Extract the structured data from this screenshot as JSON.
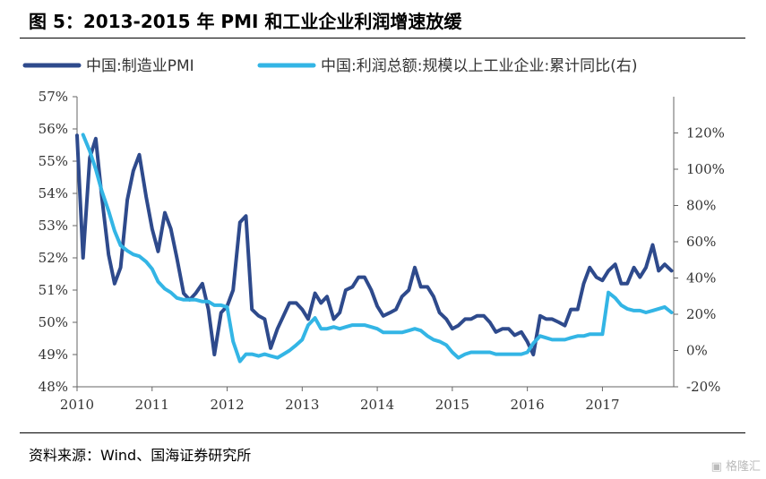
{
  "figure": {
    "title": "图 5：2013-2015 年 PMI 和工业企业利润增速放缓",
    "source": "资料来源：Wind、国海证券研究所",
    "watermark": "格隆汇"
  },
  "chart_data": {
    "type": "line",
    "x_ticks": [
      "2010",
      "2011",
      "2012",
      "2013",
      "2014",
      "2015",
      "2016",
      "2017"
    ],
    "y_left": {
      "ticks": [
        "57%",
        "56%",
        "55%",
        "54%",
        "53%",
        "52%",
        "51%",
        "50%",
        "49%",
        "48%"
      ],
      "lim": [
        48,
        57
      ]
    },
    "y_right": {
      "ticks": [
        "120%",
        "100%",
        "80%",
        "60%",
        "40%",
        "20%",
        "0%",
        "-20%"
      ],
      "lim": [
        -20,
        140
      ]
    },
    "legend_position": "top",
    "grid": false,
    "series": [
      {
        "name": "中国:制造业PMI",
        "axis": "left",
        "color": "#2e4a8c",
        "points": [
          [
            2010.0,
            55.8
          ],
          [
            2010.08,
            52.0
          ],
          [
            2010.17,
            55.1
          ],
          [
            2010.25,
            55.7
          ],
          [
            2010.33,
            53.9
          ],
          [
            2010.42,
            52.1
          ],
          [
            2010.5,
            51.2
          ],
          [
            2010.58,
            51.7
          ],
          [
            2010.67,
            53.8
          ],
          [
            2010.75,
            54.7
          ],
          [
            2010.83,
            55.2
          ],
          [
            2010.92,
            53.9
          ],
          [
            2011.0,
            52.9
          ],
          [
            2011.08,
            52.2
          ],
          [
            2011.17,
            53.4
          ],
          [
            2011.25,
            52.9
          ],
          [
            2011.33,
            52.0
          ],
          [
            2011.42,
            50.9
          ],
          [
            2011.5,
            50.7
          ],
          [
            2011.58,
            50.9
          ],
          [
            2011.67,
            51.2
          ],
          [
            2011.75,
            50.4
          ],
          [
            2011.83,
            49.0
          ],
          [
            2011.92,
            50.3
          ],
          [
            2012.0,
            50.5
          ],
          [
            2012.08,
            51.0
          ],
          [
            2012.17,
            53.1
          ],
          [
            2012.25,
            53.3
          ],
          [
            2012.33,
            50.4
          ],
          [
            2012.42,
            50.2
          ],
          [
            2012.5,
            50.1
          ],
          [
            2012.58,
            49.2
          ],
          [
            2012.67,
            49.8
          ],
          [
            2012.75,
            50.2
          ],
          [
            2012.83,
            50.6
          ],
          [
            2012.92,
            50.6
          ],
          [
            2013.0,
            50.4
          ],
          [
            2013.08,
            50.1
          ],
          [
            2013.17,
            50.9
          ],
          [
            2013.25,
            50.6
          ],
          [
            2013.33,
            50.8
          ],
          [
            2013.42,
            50.1
          ],
          [
            2013.5,
            50.3
          ],
          [
            2013.58,
            51.0
          ],
          [
            2013.67,
            51.1
          ],
          [
            2013.75,
            51.4
          ],
          [
            2013.83,
            51.4
          ],
          [
            2013.92,
            51.0
          ],
          [
            2014.0,
            50.5
          ],
          [
            2014.08,
            50.2
          ],
          [
            2014.17,
            50.3
          ],
          [
            2014.25,
            50.4
          ],
          [
            2014.33,
            50.8
          ],
          [
            2014.42,
            51.0
          ],
          [
            2014.5,
            51.7
          ],
          [
            2014.58,
            51.1
          ],
          [
            2014.67,
            51.1
          ],
          [
            2014.75,
            50.8
          ],
          [
            2014.83,
            50.3
          ],
          [
            2014.92,
            50.1
          ],
          [
            2015.0,
            49.8
          ],
          [
            2015.08,
            49.9
          ],
          [
            2015.17,
            50.1
          ],
          [
            2015.25,
            50.1
          ],
          [
            2015.33,
            50.2
          ],
          [
            2015.42,
            50.2
          ],
          [
            2015.5,
            50.0
          ],
          [
            2015.58,
            49.7
          ],
          [
            2015.67,
            49.8
          ],
          [
            2015.75,
            49.8
          ],
          [
            2015.83,
            49.6
          ],
          [
            2015.92,
            49.7
          ],
          [
            2016.0,
            49.4
          ],
          [
            2016.08,
            49.0
          ],
          [
            2016.17,
            50.2
          ],
          [
            2016.25,
            50.1
          ],
          [
            2016.33,
            50.1
          ],
          [
            2016.42,
            50.0
          ],
          [
            2016.5,
            49.9
          ],
          [
            2016.58,
            50.4
          ],
          [
            2016.67,
            50.4
          ],
          [
            2016.75,
            51.2
          ],
          [
            2016.83,
            51.7
          ],
          [
            2016.92,
            51.4
          ],
          [
            2017.0,
            51.3
          ],
          [
            2017.08,
            51.6
          ],
          [
            2017.17,
            51.8
          ],
          [
            2017.25,
            51.2
          ],
          [
            2017.33,
            51.2
          ],
          [
            2017.42,
            51.7
          ],
          [
            2017.5,
            51.4
          ],
          [
            2017.58,
            51.7
          ],
          [
            2017.67,
            52.4
          ],
          [
            2017.75,
            51.6
          ],
          [
            2017.83,
            51.8
          ],
          [
            2017.92,
            51.6
          ]
        ]
      },
      {
        "name": "中国:利润总额:规模以上工业企业:累计同比(右)",
        "axis": "right",
        "color": "#33b5e5",
        "points": [
          [
            2010.08,
            119.0
          ],
          [
            2010.17,
            110.0
          ],
          [
            2010.25,
            100.0
          ],
          [
            2010.33,
            88.0
          ],
          [
            2010.42,
            77.0
          ],
          [
            2010.5,
            66.0
          ],
          [
            2010.58,
            58.0
          ],
          [
            2010.67,
            55.0
          ],
          [
            2010.75,
            53.0
          ],
          [
            2010.83,
            52.0
          ],
          [
            2010.92,
            49.0
          ],
          [
            2011.0,
            45.0
          ],
          [
            2011.08,
            38.0
          ],
          [
            2011.17,
            34.0
          ],
          [
            2011.25,
            32.0
          ],
          [
            2011.33,
            29.0
          ],
          [
            2011.42,
            28.0
          ],
          [
            2011.5,
            28.0
          ],
          [
            2011.58,
            28.0
          ],
          [
            2011.67,
            27.0
          ],
          [
            2011.75,
            27.0
          ],
          [
            2011.83,
            25.0
          ],
          [
            2011.92,
            25.0
          ],
          [
            2012.0,
            24.0
          ],
          [
            2012.08,
            5.0
          ],
          [
            2012.17,
            -6.0
          ],
          [
            2012.25,
            -2.0
          ],
          [
            2012.33,
            -2.0
          ],
          [
            2012.42,
            -3.0
          ],
          [
            2012.5,
            -2.0
          ],
          [
            2012.58,
            -3.0
          ],
          [
            2012.67,
            -4.0
          ],
          [
            2012.75,
            -2.0
          ],
          [
            2012.83,
            0.0
          ],
          [
            2012.92,
            3.0
          ],
          [
            2013.0,
            6.0
          ],
          [
            2013.08,
            14.0
          ],
          [
            2013.17,
            18.0
          ],
          [
            2013.25,
            12.0
          ],
          [
            2013.33,
            12.0
          ],
          [
            2013.42,
            13.0
          ],
          [
            2013.5,
            12.0
          ],
          [
            2013.58,
            13.0
          ],
          [
            2013.67,
            14.0
          ],
          [
            2013.75,
            14.0
          ],
          [
            2013.83,
            14.0
          ],
          [
            2013.92,
            13.0
          ],
          [
            2014.0,
            12.0
          ],
          [
            2014.08,
            10.0
          ],
          [
            2014.17,
            10.0
          ],
          [
            2014.25,
            10.0
          ],
          [
            2014.33,
            10.0
          ],
          [
            2014.42,
            11.0
          ],
          [
            2014.5,
            12.0
          ],
          [
            2014.58,
            11.0
          ],
          [
            2014.67,
            8.0
          ],
          [
            2014.75,
            6.0
          ],
          [
            2014.83,
            5.0
          ],
          [
            2014.92,
            3.0
          ],
          [
            2015.0,
            -1.0
          ],
          [
            2015.08,
            -4.0
          ],
          [
            2015.17,
            -2.0
          ],
          [
            2015.25,
            -1.0
          ],
          [
            2015.33,
            -1.0
          ],
          [
            2015.42,
            -1.0
          ],
          [
            2015.5,
            -1.0
          ],
          [
            2015.58,
            -2.0
          ],
          [
            2015.67,
            -2.0
          ],
          [
            2015.75,
            -2.0
          ],
          [
            2015.83,
            -2.0
          ],
          [
            2015.92,
            -2.0
          ],
          [
            2016.0,
            -1.0
          ],
          [
            2016.08,
            4.0
          ],
          [
            2016.17,
            8.0
          ],
          [
            2016.25,
            7.0
          ],
          [
            2016.33,
            6.0
          ],
          [
            2016.42,
            6.0
          ],
          [
            2016.5,
            6.0
          ],
          [
            2016.58,
            7.0
          ],
          [
            2016.67,
            8.0
          ],
          [
            2016.75,
            8.0
          ],
          [
            2016.83,
            9.0
          ],
          [
            2016.92,
            9.0
          ],
          [
            2017.0,
            9.0
          ],
          [
            2017.08,
            32.0
          ],
          [
            2017.17,
            29.0
          ],
          [
            2017.25,
            25.0
          ],
          [
            2017.33,
            23.0
          ],
          [
            2017.42,
            22.0
          ],
          [
            2017.5,
            22.0
          ],
          [
            2017.58,
            21.0
          ],
          [
            2017.67,
            22.0
          ],
          [
            2017.75,
            23.0
          ],
          [
            2017.83,
            24.0
          ],
          [
            2017.92,
            21.0
          ]
        ]
      }
    ]
  }
}
